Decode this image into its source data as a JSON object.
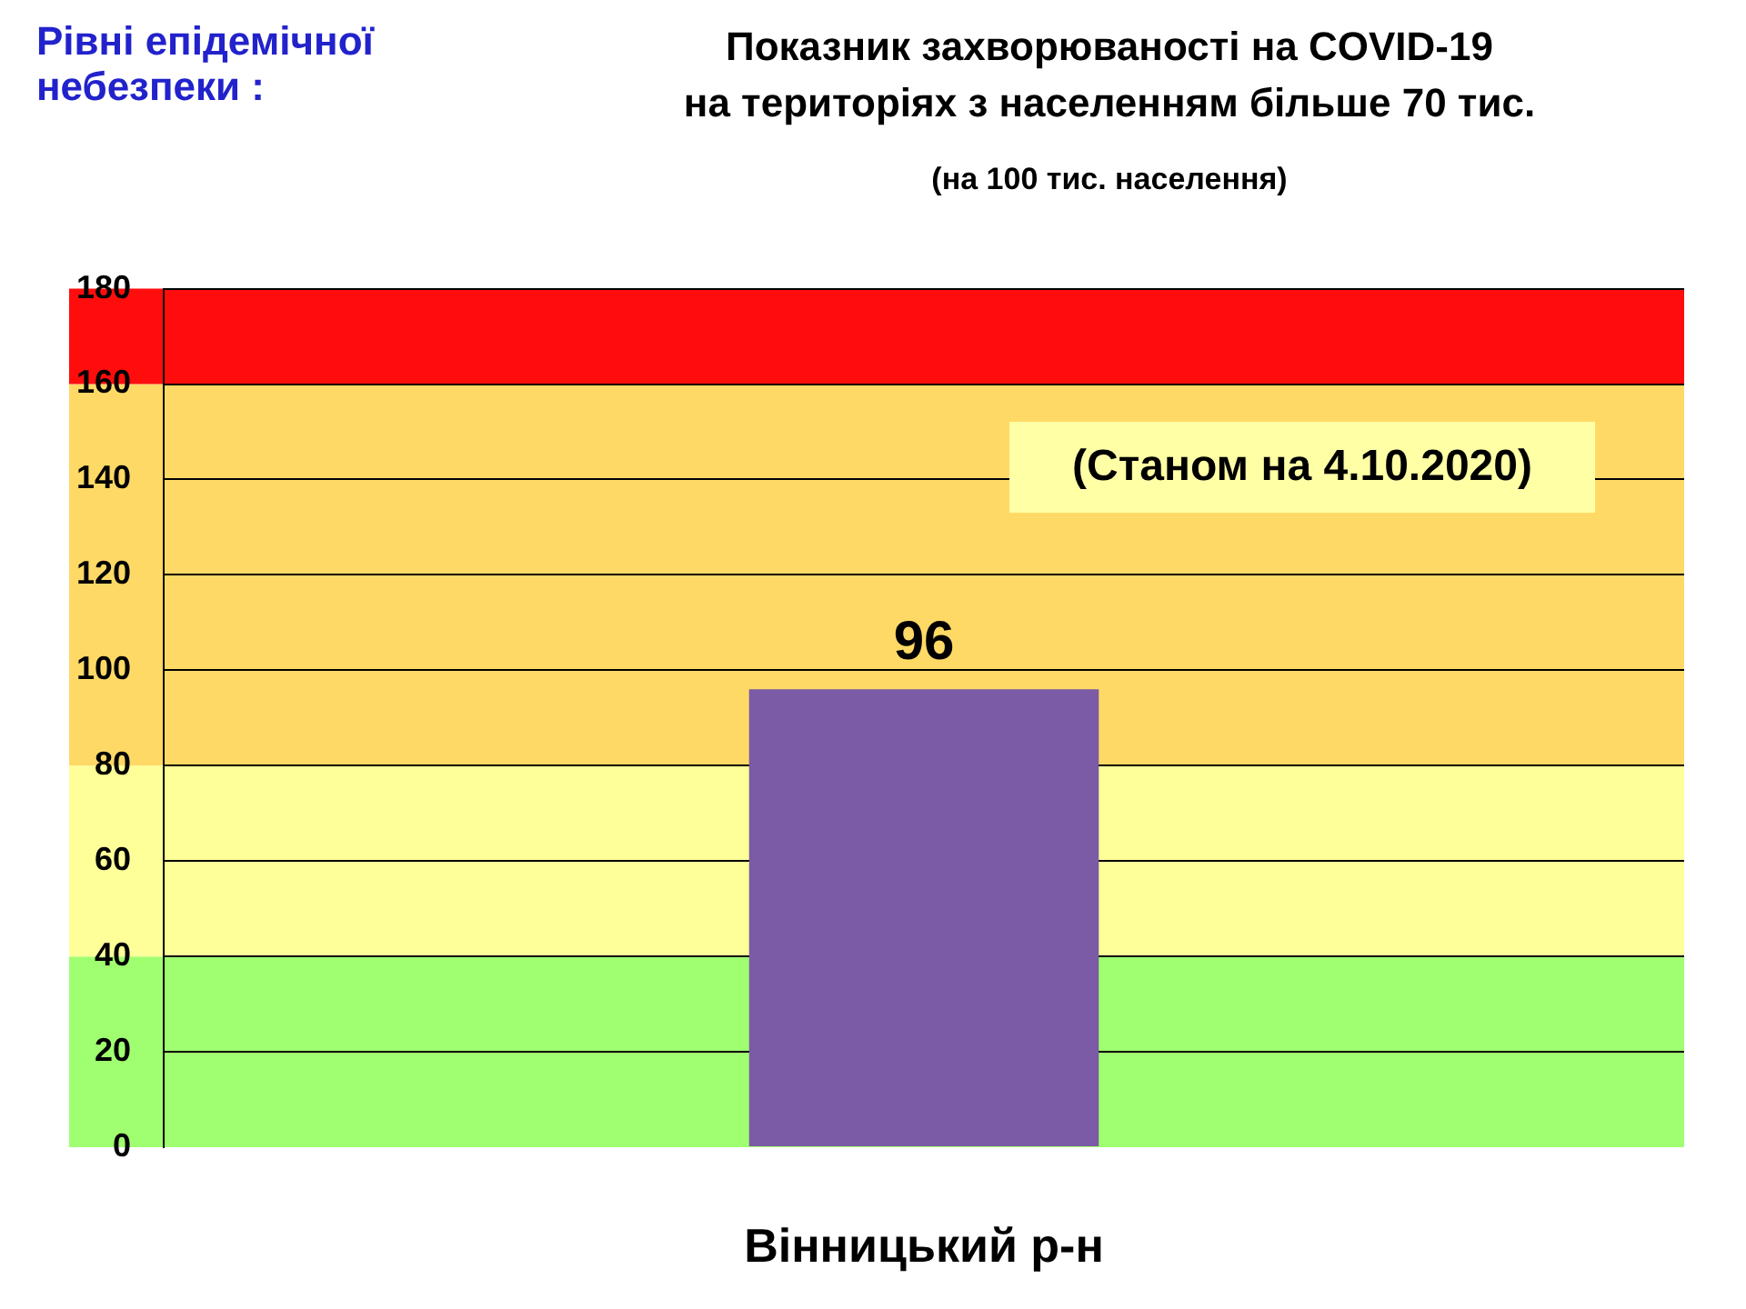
{
  "chart_data": {
    "type": "bar",
    "title": "Показник захворюваності на COVID-19\nна територіях з населенням більше 70 тис.",
    "subtitle": "(на 100 тис. населення)",
    "annotations": [
      "Рівні епідемічної небезпеки :",
      "(Станом на 4.10.2020)"
    ],
    "categories": [
      "Вінницький р-н"
    ],
    "values": [
      96
    ],
    "color": "#7b5aa6",
    "ylim": [
      0,
      180
    ],
    "yticks": [
      0,
      20,
      40,
      60,
      80,
      100,
      120,
      140,
      160,
      180
    ],
    "grid": "y",
    "data_labels": true,
    "bands": [
      {
        "axis": "y",
        "from": 0,
        "to": 40,
        "color": "#a0ff70"
      },
      {
        "axis": "y",
        "from": 40,
        "to": 80,
        "color": "#ffff99"
      },
      {
        "axis": "y",
        "from": 80,
        "to": 160,
        "color": "#ffd966"
      },
      {
        "axis": "y",
        "from": 160,
        "to": 180,
        "color": "#ff0d0d"
      }
    ]
  }
}
